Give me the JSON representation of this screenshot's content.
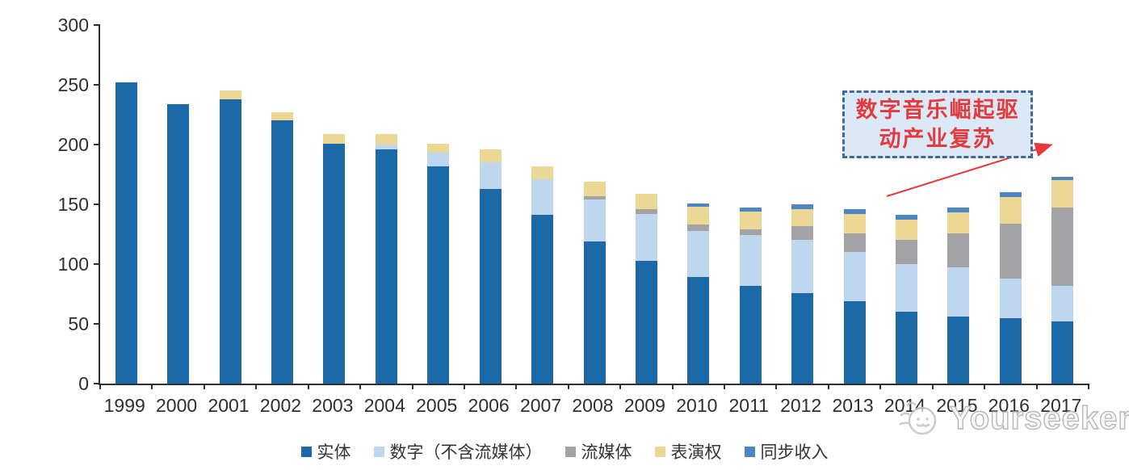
{
  "chart_data": {
    "type": "bar",
    "stacked": true,
    "categories": [
      "1999",
      "2000",
      "2001",
      "2002",
      "2003",
      "2004",
      "2005",
      "2006",
      "2007",
      "2008",
      "2009",
      "2010",
      "2011",
      "2012",
      "2013",
      "2014",
      "2015",
      "2016",
      "2017"
    ],
    "series": [
      {
        "key": "physical",
        "name": "实体",
        "color": "#1B6AA7",
        "values": [
          252,
          234,
          238,
          220,
          201,
          196,
          182,
          163,
          141,
          119,
          103,
          89,
          82,
          76,
          69,
          60,
          56,
          55,
          52
        ]
      },
      {
        "key": "digital-excl-streaming",
        "name": "数字（不含流媒体）",
        "color": "#BFD7EE",
        "values": [
          0,
          0,
          0,
          0,
          0,
          4,
          11,
          22,
          30,
          35,
          39,
          39,
          42,
          44,
          41,
          40,
          41,
          33,
          30
        ]
      },
      {
        "key": "streaming",
        "name": "流媒体",
        "color": "#A3A3A5",
        "values": [
          0,
          0,
          0,
          0,
          0,
          0,
          0,
          0,
          0,
          3,
          4,
          5,
          5,
          12,
          16,
          20,
          29,
          46,
          65
        ]
      },
      {
        "key": "performance-rights",
        "name": "表演权",
        "color": "#EDD794",
        "values": [
          0,
          0,
          7,
          7,
          8,
          9,
          8,
          11,
          11,
          12,
          13,
          15,
          15,
          14,
          16,
          17,
          17,
          22,
          23
        ]
      },
      {
        "key": "sync-revenue",
        "name": "同步收入",
        "color": "#4C86C4",
        "values": [
          0,
          0,
          0,
          0,
          0,
          0,
          0,
          0,
          0,
          0,
          0,
          3,
          3,
          4,
          4,
          4,
          4,
          4,
          3
        ]
      }
    ],
    "ylim": [
      0,
      300
    ],
    "yticks": [
      0,
      50,
      100,
      150,
      200,
      250,
      300
    ],
    "xlabel": "",
    "ylabel": "",
    "title": "",
    "grid": false,
    "legend_position": "bottom"
  },
  "annotation": {
    "line1": "数字音乐崛起驱",
    "line2": "动产业复苏",
    "text_color": "#E13B40",
    "border_color": "#45689B",
    "fill_color": "#DBE8F6",
    "arrow_color": "#E8383C"
  },
  "watermark": {
    "text": "Yourseeker",
    "logo": "cat-face-logo"
  },
  "colors": {
    "axis": "#2F2F2F",
    "label": "#2F2F2F"
  }
}
